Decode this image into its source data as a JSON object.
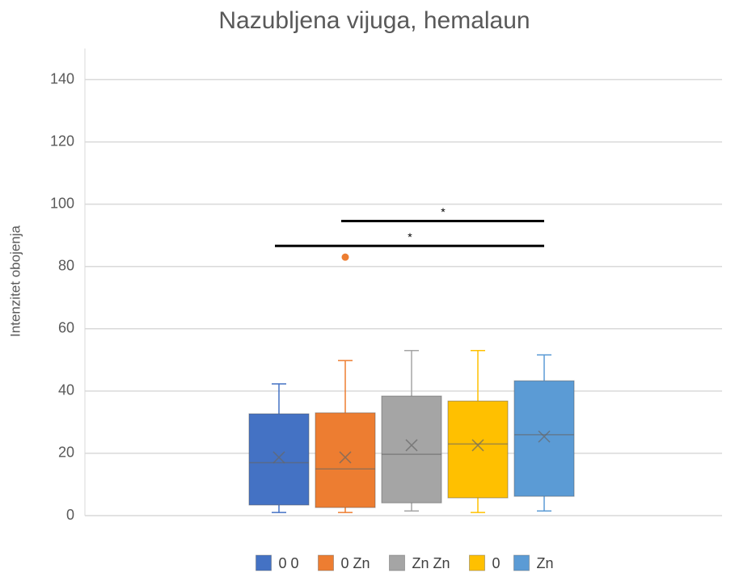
{
  "chart_data": {
    "type": "box",
    "title": "Nazubljena vijuga, hemalaun",
    "y_label": "Intenzitet obojenja",
    "ylim": [
      0,
      150
    ],
    "yticks": [
      0,
      20,
      40,
      60,
      80,
      100,
      120,
      140
    ],
    "grid": true,
    "legend": "bottom",
    "series": [
      {
        "name": "0 0",
        "color": "#4472c4",
        "min": 1,
        "q1": 3.4,
        "median": 17,
        "q3": 32.7,
        "max": 42.3,
        "mean": 18.7,
        "outliers": []
      },
      {
        "name": "0 Zn",
        "color": "#ed7d31",
        "min": 1,
        "q1": 2.6,
        "median": 15,
        "q3": 33,
        "max": 49.8,
        "mean": 18.7,
        "outliers": [
          83
        ]
      },
      {
        "name": "Zn Zn",
        "color": "#a5a5a5",
        "min": 1.5,
        "q1": 4.1,
        "median": 19.7,
        "q3": 38.4,
        "max": 53,
        "mean": 22.6,
        "outliers": []
      },
      {
        "name": "0",
        "color": "#ffc000",
        "min": 1,
        "q1": 5.7,
        "median": 23,
        "q3": 36.8,
        "max": 53,
        "mean": 22.6,
        "outliers": []
      },
      {
        "name": "Zn",
        "color": "#5b9bd5",
        "min": 1.5,
        "q1": 6.2,
        "median": 26,
        "q3": 43.3,
        "max": 51.6,
        "mean": 25.4,
        "outliers": []
      }
    ],
    "annotations": [
      {
        "text": "*",
        "y": 94.6
      },
      {
        "text": "*",
        "y": 86.6
      }
    ]
  }
}
